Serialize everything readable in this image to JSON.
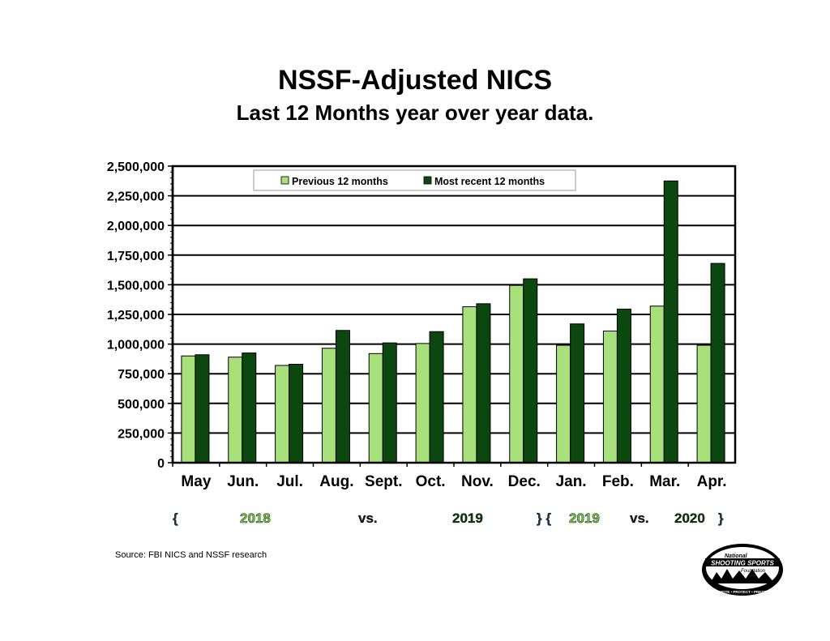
{
  "title": "NSSF-Adjusted NICS",
  "subtitle": "Last 12 Months year over year data.",
  "source": "Source: FBI NICS and NSSF research",
  "colors": {
    "previous": "#a8e07c",
    "recent": "#0d4710",
    "plot_background": "#ffffff",
    "gridline": "#000000"
  },
  "range_labels": {
    "open_brace": "{",
    "year_a": "2018",
    "vs_a": "vs.",
    "year_b": "2019",
    "mid_braces": "} {",
    "year_c": "2019",
    "vs_b": "vs.",
    "year_d": "2020",
    "close_brace": "}"
  },
  "logo": {
    "line1": "National",
    "line2": "SHOOTING SPORTS",
    "line3": "Foundation",
    "tagline": "PROMOTE • PROTECT • PRESERVE"
  },
  "chart_data": {
    "type": "bar",
    "title": "",
    "xlabel": "",
    "ylabel": "",
    "categories": [
      "May",
      "Jun.",
      "Jul.",
      "Aug.",
      "Sept.",
      "Oct.",
      "Nov.",
      "Dec.",
      "Jan.",
      "Feb.",
      "Mar.",
      "Apr."
    ],
    "series": [
      {
        "name": "Previous 12 months",
        "values": [
          900000,
          890000,
          820000,
          965000,
          920000,
          1005000,
          1315000,
          1495000,
          990000,
          1110000,
          1320000,
          990000
        ]
      },
      {
        "name": "Most recent 12 months",
        "values": [
          910000,
          925000,
          830000,
          1115000,
          1010000,
          1105000,
          1340000,
          1550000,
          1170000,
          1295000,
          2375000,
          1680000
        ]
      }
    ],
    "ylim": [
      0,
      2500000
    ],
    "yticks": [
      0,
      250000,
      500000,
      750000,
      1000000,
      1250000,
      1500000,
      1750000,
      2000000,
      2250000,
      2500000
    ],
    "ytick_labels": [
      "0",
      "250,000",
      "500,000",
      "750,000",
      "1,000,000",
      "1,250,000",
      "1,500,000",
      "1,750,000",
      "2,000,000",
      "2,250,000",
      "2,500,000"
    ],
    "grid": true,
    "legend_position": "top-center"
  }
}
